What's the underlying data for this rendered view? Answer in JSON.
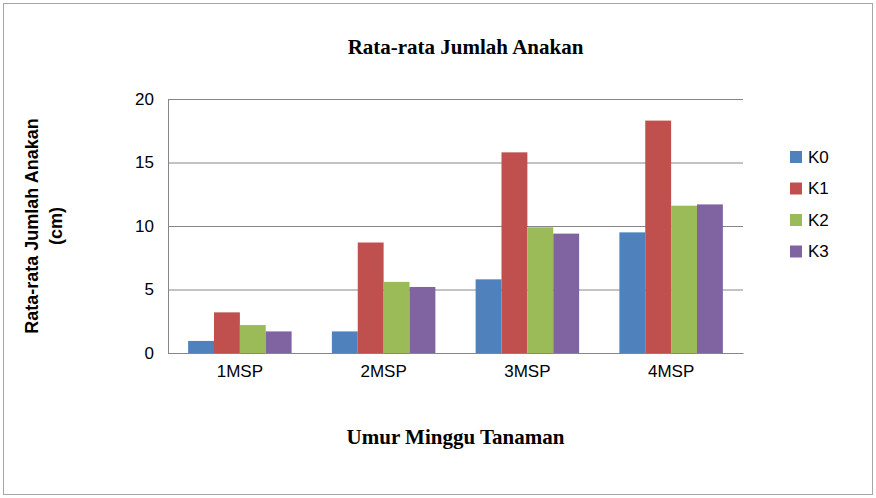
{
  "chart_data": {
    "type": "bar",
    "title": "Rata-rata Jumlah Anakan",
    "x_label": "Umur Minggu Tanaman",
    "y_label": "Rata-rata Jumlah Anakan (cm)",
    "categories": [
      "1MSP",
      "2MSP",
      "3MSP",
      "4MSP"
    ],
    "series": [
      {
        "name": "K0",
        "color": "#4f81bd",
        "values": [
          0.95,
          1.7,
          5.8,
          9.5
        ]
      },
      {
        "name": "K1",
        "color": "#c0504d",
        "values": [
          3.2,
          8.7,
          15.8,
          18.3
        ]
      },
      {
        "name": "K2",
        "color": "#9bbb59",
        "values": [
          2.2,
          5.6,
          9.9,
          11.6
        ]
      },
      {
        "name": "K3",
        "color": "#8064a2",
        "values": [
          1.7,
          5.2,
          9.4,
          11.7
        ]
      }
    ],
    "ylim": [
      0,
      20
    ],
    "yticks": [
      0,
      5,
      10,
      15,
      20
    ],
    "grid": true,
    "legend": "right"
  }
}
